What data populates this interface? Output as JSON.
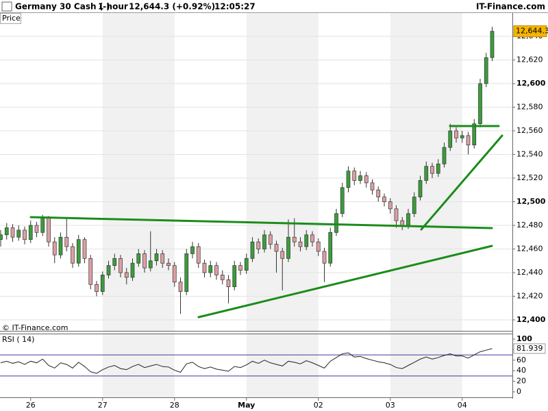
{
  "header": {
    "instrument": "Germany 30 Cash (-)",
    "interval": "1 hour",
    "quote": "12,644.3 (+0.92%)",
    "time": "12:05:27",
    "brand": "IT-Finance.com"
  },
  "chart_data": [
    {
      "type": "candlestick",
      "panel_label": "Price",
      "watermark": "© IT-Finance.com",
      "up_color": "#3c9c3c",
      "down_color": "#dca0a4",
      "grid": true,
      "categories": [
        null,
        null,
        null,
        null,
        null,
        "26",
        null,
        null,
        null,
        null,
        null,
        null,
        null,
        null,
        null,
        null,
        null,
        "27",
        null,
        null,
        null,
        null,
        null,
        null,
        null,
        null,
        null,
        null,
        null,
        "28",
        null,
        null,
        null,
        null,
        null,
        null,
        null,
        null,
        null,
        null,
        null,
        "May",
        null,
        null,
        null,
        null,
        null,
        null,
        null,
        null,
        null,
        null,
        null,
        "02",
        null,
        null,
        null,
        null,
        null,
        null,
        null,
        null,
        null,
        null,
        null,
        "03",
        null,
        null,
        null,
        null,
        null,
        null,
        null,
        null,
        null,
        null,
        null,
        "04",
        null,
        null,
        null,
        null,
        null
      ],
      "open": [
        12468,
        12472,
        12478,
        12470,
        12476,
        12468,
        12480,
        12474,
        12486,
        12466,
        12455,
        12470,
        12462,
        12448,
        12468,
        12452,
        12430,
        12424,
        12438,
        12446,
        12452,
        12440,
        12436,
        12448,
        12456,
        12444,
        12450,
        12456,
        12448,
        12446,
        12432,
        12424,
        12456,
        12462,
        12448,
        12440,
        12446,
        12438,
        12434,
        12428,
        12446,
        12442,
        12452,
        12466,
        12460,
        12472,
        12464,
        12458,
        12452,
        12470,
        12466,
        12462,
        12472,
        12466,
        12458,
        12448,
        12474,
        12490,
        12512,
        12526,
        12518,
        12522,
        12516,
        12510,
        12504,
        12500,
        12494,
        12484,
        12480,
        12490,
        12504,
        12518,
        12530,
        12524,
        12532,
        12546,
        12560,
        12554,
        12556,
        12548,
        12566,
        12600,
        12622
      ],
      "high": [
        12476,
        12482,
        12481,
        12480,
        12479,
        12484,
        12483,
        12489,
        12488,
        12470,
        12474,
        12487,
        12465,
        12472,
        12470,
        12455,
        12433,
        12441,
        12450,
        12456,
        12455,
        12444,
        12452,
        12460,
        12459,
        12475,
        12460,
        12459,
        12452,
        12449,
        12436,
        12460,
        12466,
        12465,
        12451,
        12450,
        12449,
        12442,
        12438,
        12450,
        12449,
        12456,
        12470,
        12469,
        12476,
        12475,
        12467,
        12461,
        12485,
        12486,
        12470,
        12476,
        12475,
        12469,
        12461,
        12478,
        12494,
        12516,
        12530,
        12529,
        12526,
        12525,
        12519,
        12513,
        12507,
        12503,
        12497,
        12487,
        12494,
        12508,
        12522,
        12534,
        12533,
        12536,
        12550,
        12566,
        12563,
        12560,
        12559,
        12570,
        12604,
        12626,
        12648
      ],
      "low": [
        12462,
        12468,
        12466,
        12467,
        12464,
        12465,
        12470,
        12471,
        12462,
        12448,
        12452,
        12458,
        12444,
        12445,
        12448,
        12426,
        12420,
        12421,
        12435,
        12442,
        12436,
        12430,
        12433,
        12445,
        12440,
        12441,
        12446,
        12444,
        12442,
        12428,
        12405,
        12421,
        12452,
        12444,
        12436,
        12436,
        12434,
        12430,
        12414,
        12425,
        12438,
        12439,
        12449,
        12456,
        12457,
        12460,
        12440,
        12425,
        12449,
        12462,
        12458,
        12459,
        12462,
        12454,
        12432,
        12445,
        12471,
        12487,
        12508,
        12514,
        12515,
        12512,
        12506,
        12500,
        12496,
        12490,
        12478,
        12476,
        12477,
        12487,
        12501,
        12515,
        12520,
        12521,
        12529,
        12543,
        12550,
        12550,
        12540,
        12545,
        12563,
        12597,
        12619
      ],
      "close": [
        12472,
        12478,
        12470,
        12476,
        12468,
        12480,
        12474,
        12486,
        12466,
        12455,
        12470,
        12462,
        12448,
        12468,
        12452,
        12430,
        12424,
        12438,
        12446,
        12452,
        12440,
        12436,
        12448,
        12456,
        12444,
        12450,
        12456,
        12448,
        12446,
        12432,
        12424,
        12456,
        12462,
        12448,
        12440,
        12446,
        12438,
        12434,
        12428,
        12446,
        12442,
        12452,
        12466,
        12460,
        12472,
        12464,
        12458,
        12452,
        12470,
        12466,
        12462,
        12472,
        12466,
        12458,
        12448,
        12474,
        12490,
        12512,
        12526,
        12518,
        12522,
        12516,
        12510,
        12504,
        12500,
        12494,
        12484,
        12480,
        12490,
        12504,
        12518,
        12530,
        12524,
        12532,
        12546,
        12560,
        12554,
        12556,
        12548,
        12566,
        12600,
        12622,
        12644.3
      ],
      "last_price": {
        "value": 12644.3,
        "label": "12,644.3"
      },
      "ylim": [
        12391.3,
        12649.3
      ],
      "yticks": [
        {
          "value": 12400,
          "label": "12,400"
        },
        {
          "value": 12420,
          "label": "12,420"
        },
        {
          "value": 12440,
          "label": "12,440"
        },
        {
          "value": 12460,
          "label": "12,460"
        },
        {
          "value": 12480,
          "label": "12,480"
        },
        {
          "value": 12500,
          "label": "12,500"
        },
        {
          "value": 12520,
          "label": "12,520"
        },
        {
          "value": 12540,
          "label": "12,540"
        },
        {
          "value": 12560,
          "label": "12,560"
        },
        {
          "value": 12580,
          "label": "12,580"
        },
        {
          "value": 12600,
          "label": "12,600"
        },
        {
          "value": 12620,
          "label": "12,620"
        },
        {
          "value": 12640,
          "label": "12,640"
        }
      ]
    },
    {
      "type": "line",
      "panel_label": "RSI ( 14)",
      "color": "#222222",
      "values": [
        55,
        58,
        54,
        57,
        52,
        58,
        55,
        62,
        50,
        45,
        55,
        52,
        45,
        56,
        48,
        38,
        35,
        42,
        47,
        50,
        44,
        42,
        48,
        52,
        46,
        49,
        52,
        48,
        47,
        41,
        37,
        53,
        56,
        48,
        44,
        47,
        43,
        41,
        39,
        48,
        46,
        51,
        58,
        54,
        60,
        55,
        52,
        49,
        58,
        56,
        53,
        59,
        55,
        50,
        45,
        58,
        65,
        72,
        74,
        66,
        67,
        63,
        60,
        57,
        55,
        52,
        46,
        44,
        50,
        56,
        62,
        66,
        62,
        65,
        69,
        72,
        68,
        68,
        64,
        70,
        76,
        79,
        81.939
      ],
      "levels": [
        30,
        70
      ],
      "level_color": "#3a3a9a",
      "ylim": [
        -10.4,
        110.4
      ],
      "yticks": [
        0,
        20,
        40,
        60,
        80,
        100
      ]
    }
  ]
}
